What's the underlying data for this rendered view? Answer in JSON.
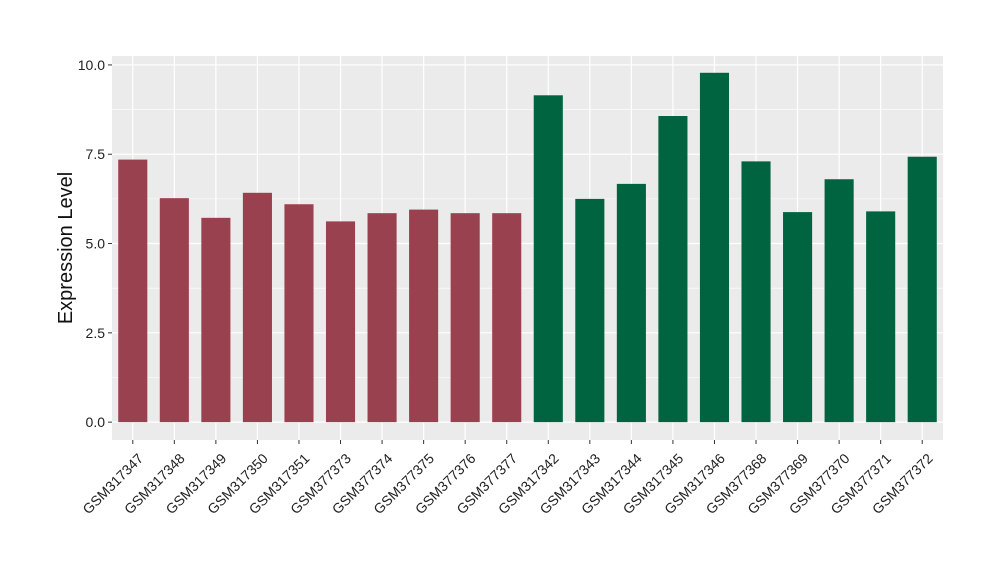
{
  "chart_data": {
    "type": "bar",
    "title": "",
    "xlabel": "",
    "ylabel": "Expression Level",
    "ylim": [
      -0.5,
      10.25
    ],
    "yticks": [
      0.0,
      2.5,
      5.0,
      7.5,
      10.0
    ],
    "ytick_labels": [
      "0.0",
      "2.5",
      "5.0",
      "7.5",
      "10.0"
    ],
    "grid": true,
    "legend": "none",
    "categories": [
      "GSM317347",
      "GSM317348",
      "GSM317349",
      "GSM317350",
      "GSM317351",
      "GSM377373",
      "GSM377374",
      "GSM377375",
      "GSM377376",
      "GSM377377",
      "GSM317342",
      "GSM317343",
      "GSM317344",
      "GSM317345",
      "GSM317346",
      "GSM377368",
      "GSM377369",
      "GSM377370",
      "GSM377371",
      "GSM377372"
    ],
    "values": [
      7.35,
      6.27,
      5.72,
      6.42,
      6.1,
      5.62,
      5.85,
      5.95,
      5.85,
      5.85,
      9.15,
      6.25,
      6.67,
      8.57,
      9.78,
      7.3,
      5.88,
      6.8,
      5.9,
      7.43
    ],
    "group": [
      0,
      0,
      0,
      0,
      0,
      0,
      0,
      0,
      0,
      0,
      1,
      1,
      1,
      1,
      1,
      1,
      1,
      1,
      1,
      1
    ],
    "colors": [
      "#99414f",
      "#006441"
    ],
    "panel_background": "#ebebeb",
    "grid_color": "#ffffff"
  }
}
